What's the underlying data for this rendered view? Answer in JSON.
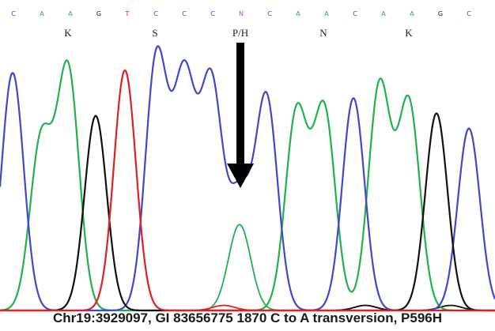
{
  "chart_data": {
    "type": "line",
    "bases": [
      "C",
      "A",
      "A",
      "G",
      "T",
      "C",
      "C",
      "C",
      "N",
      "C",
      "A",
      "A",
      "C",
      "A",
      "A",
      "G",
      "C"
    ],
    "amino_acids": [
      "K",
      "S",
      "P/H",
      "N",
      "K"
    ],
    "annotation": "Chr19:3929097, GI 83656775 1870 C to A transversion, P596H",
    "ylim": [
      0,
      100
    ],
    "colors": {
      "A": "#22b14c",
      "C": "#3f48cc",
      "G": "#111111",
      "T": "#e02020",
      "N": "#c040c0"
    },
    "series": [
      {
        "name": "A",
        "peaks": [
          [
            52,
            67
          ],
          [
            86,
            95
          ],
          [
            375,
            78
          ],
          [
            410,
            79
          ],
          [
            480,
            89
          ],
          [
            517,
            82
          ]
        ]
      },
      {
        "name": "C",
        "peaks": [
          [
            16,
            94
          ],
          [
            198,
            100
          ],
          [
            233,
            90
          ],
          [
            267,
            89
          ],
          [
            303,
            44
          ],
          [
            337,
            84
          ],
          [
            447,
            84
          ],
          [
            593,
            72
          ]
        ]
      },
      {
        "name": "G",
        "peaks": [
          [
            121,
            77
          ],
          [
            552,
            78
          ]
        ]
      },
      {
        "name": "T",
        "peaks": [
          [
            158,
            95
          ]
        ]
      },
      {
        "name": "N",
        "peaks": []
      }
    ],
    "baseline_traces": [
      {
        "name": "A",
        "peaks": [
          [
            303,
            34
          ]
        ]
      },
      {
        "name": "T",
        "peaks": [
          [
            283,
            2
          ],
          [
            462,
            2
          ]
        ]
      },
      {
        "name": "G",
        "peaks": [
          [
            462,
            2
          ],
          [
            570,
            2
          ]
        ]
      }
    ]
  }
}
